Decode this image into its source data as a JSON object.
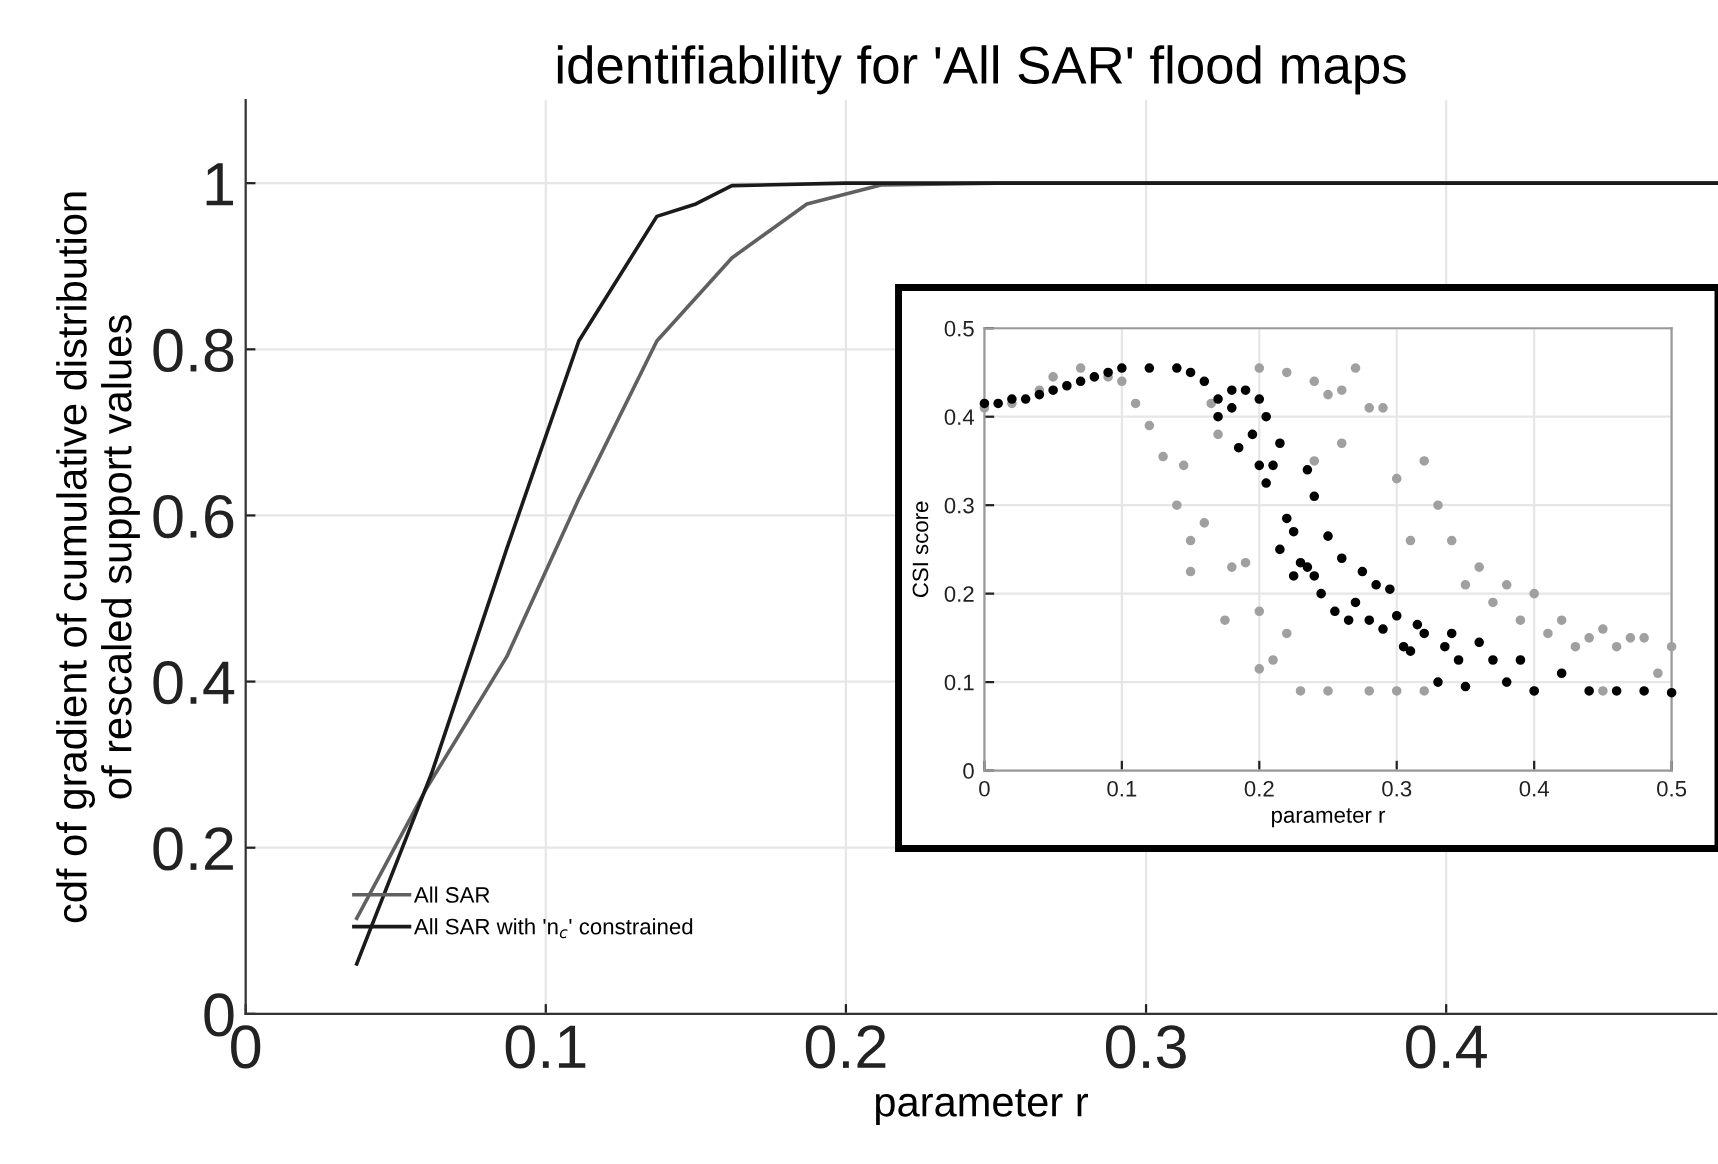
{
  "chart_data": [
    {
      "type": "line",
      "title": "identifiability for 'All SAR' flood maps",
      "xlabel": "parameter r",
      "ylabel": "cdf of gradient of cumulative distribution\nof rescaled support values",
      "series": [
        {
          "name": "All SAR",
          "color": "#606060",
          "x": [
            0.037,
            0.06,
            0.087,
            0.111,
            0.137,
            0.162,
            0.187,
            0.212,
            0.25,
            0.49
          ],
          "values": [
            0.115,
            0.27,
            0.43,
            0.62,
            0.81,
            0.91,
            0.975,
            0.998,
            1,
            1
          ]
        },
        {
          "name": "All SAR with 'n$_{c}$' constrained",
          "color": "#1a1a1a",
          "x": [
            0.037,
            0.062,
            0.087,
            0.111,
            0.137,
            0.15,
            0.162,
            0.2,
            0.49
          ],
          "values": [
            0.06,
            0.29,
            0.56,
            0.81,
            0.96,
            0.975,
            0.997,
            1,
            1
          ]
        }
      ],
      "xlim": [
        0,
        0.49
      ],
      "ylim": [
        0,
        1.1
      ],
      "xticks": [
        0,
        0.1,
        0.2,
        0.3,
        0.4
      ],
      "yticks": [
        0,
        0.2,
        0.4,
        0.6,
        0.8,
        1
      ],
      "grid": true,
      "legend": "bottom left",
      "marker": "none",
      "line_style": "solid"
    },
    {
      "type": "scatter",
      "xlabel": "parameter r",
      "ylabel": "CSI score",
      "marker": "circle",
      "grid": true,
      "series": [
        {
          "color": "#a0a0a0",
          "x": [
            0.0,
            0.02,
            0.04,
            0.05,
            0.07,
            0.09,
            0.1,
            0.11,
            0.12,
            0.13,
            0.14,
            0.145,
            0.15,
            0.15,
            0.16,
            0.165,
            0.17,
            0.175,
            0.18,
            0.19,
            0.2,
            0.2,
            0.21,
            0.22,
            0.23,
            0.24,
            0.25,
            0.26,
            0.27,
            0.28,
            0.29,
            0.3,
            0.3,
            0.31,
            0.32,
            0.32,
            0.33,
            0.34,
            0.35,
            0.36,
            0.37,
            0.38,
            0.39,
            0.4,
            0.41,
            0.42,
            0.43,
            0.44,
            0.45,
            0.46,
            0.47,
            0.48,
            0.49,
            0.5,
            0.2,
            0.22,
            0.24,
            0.25,
            0.26,
            0.28,
            0.4,
            0.45
          ],
          "values": [
            0.41,
            0.415,
            0.43,
            0.445,
            0.455,
            0.445,
            0.44,
            0.415,
            0.39,
            0.355,
            0.3,
            0.345,
            0.26,
            0.225,
            0.28,
            0.415,
            0.38,
            0.17,
            0.23,
            0.235,
            0.18,
            0.115,
            0.125,
            0.155,
            0.09,
            0.35,
            0.09,
            0.37,
            0.455,
            0.09,
            0.41,
            0.33,
            0.09,
            0.26,
            0.35,
            0.09,
            0.3,
            0.26,
            0.21,
            0.23,
            0.19,
            0.21,
            0.17,
            0.2,
            0.155,
            0.17,
            0.14,
            0.15,
            0.16,
            0.14,
            0.15,
            0.15,
            0.11,
            0.14,
            0.455,
            0.45,
            0.44,
            0.425,
            0.43,
            0.41,
            0.09,
            0.09
          ]
        },
        {
          "color": "#000000",
          "x": [
            0.0,
            0.01,
            0.02,
            0.03,
            0.04,
            0.05,
            0.06,
            0.07,
            0.08,
            0.09,
            0.1,
            0.12,
            0.14,
            0.15,
            0.16,
            0.17,
            0.17,
            0.18,
            0.18,
            0.185,
            0.19,
            0.195,
            0.2,
            0.2,
            0.205,
            0.205,
            0.21,
            0.215,
            0.215,
            0.22,
            0.225,
            0.225,
            0.23,
            0.235,
            0.235,
            0.24,
            0.24,
            0.245,
            0.25,
            0.255,
            0.26,
            0.265,
            0.27,
            0.275,
            0.28,
            0.285,
            0.29,
            0.295,
            0.3,
            0.305,
            0.31,
            0.315,
            0.32,
            0.33,
            0.335,
            0.34,
            0.345,
            0.35,
            0.36,
            0.37,
            0.38,
            0.39,
            0.4,
            0.42,
            0.44,
            0.46,
            0.48,
            0.5
          ],
          "values": [
            0.415,
            0.415,
            0.42,
            0.42,
            0.425,
            0.43,
            0.435,
            0.44,
            0.445,
            0.45,
            0.455,
            0.455,
            0.455,
            0.45,
            0.44,
            0.42,
            0.4,
            0.43,
            0.41,
            0.365,
            0.43,
            0.38,
            0.42,
            0.345,
            0.4,
            0.325,
            0.345,
            0.37,
            0.25,
            0.285,
            0.27,
            0.22,
            0.235,
            0.34,
            0.23,
            0.31,
            0.22,
            0.2,
            0.265,
            0.18,
            0.24,
            0.17,
            0.19,
            0.225,
            0.17,
            0.21,
            0.16,
            0.205,
            0.175,
            0.14,
            0.135,
            0.165,
            0.155,
            0.1,
            0.14,
            0.155,
            0.125,
            0.095,
            0.145,
            0.125,
            0.1,
            0.125,
            0.09,
            0.11,
            0.09,
            0.09,
            0.09,
            0.088
          ]
        }
      ],
      "xlim": [
        0,
        0.5
      ],
      "ylim": [
        0,
        0.5
      ],
      "xticks": [
        0,
        0.1,
        0.2,
        0.3,
        0.4,
        0.5
      ],
      "yticks": [
        0,
        0.1,
        0.2,
        0.3,
        0.4,
        0.5
      ]
    }
  ]
}
